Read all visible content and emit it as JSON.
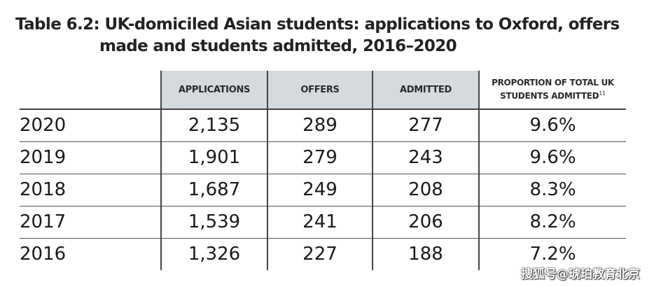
{
  "title": {
    "line1": "Table 6.2: UK-domiciled Asian students: applications to Oxford, offers",
    "line2": "made and students admitted, 2016–2020"
  },
  "table": {
    "headers": [
      "APPLICATIONS",
      "OFFERS",
      "ADMITTED"
    ],
    "proportion_header": "PROPORTION OF TOTAL UK STUDENTS ADMITTED",
    "proportion_line1": "PROPORTION OF TOTAL UK",
    "proportion_line2": "STUDENTS ADMITTED",
    "footnote_ref": "11",
    "rows": [
      {
        "year": "2020",
        "applications": "2,135",
        "offers": "289",
        "admitted": "277",
        "proportion": "9.6%"
      },
      {
        "year": "2019",
        "applications": "1,901",
        "offers": "279",
        "admitted": "243",
        "proportion": "9.6%"
      },
      {
        "year": "2018",
        "applications": "1,687",
        "offers": "249",
        "admitted": "208",
        "proportion": "8.3%"
      },
      {
        "year": "2017",
        "applications": "1,539",
        "offers": "241",
        "admitted": "206",
        "proportion": "8.2%"
      },
      {
        "year": "2016",
        "applications": "1,326",
        "offers": "227",
        "admitted": "188",
        "proportion": "7.2%"
      }
    ]
  },
  "watermark": "搜狐号@琥珀教育北京"
}
